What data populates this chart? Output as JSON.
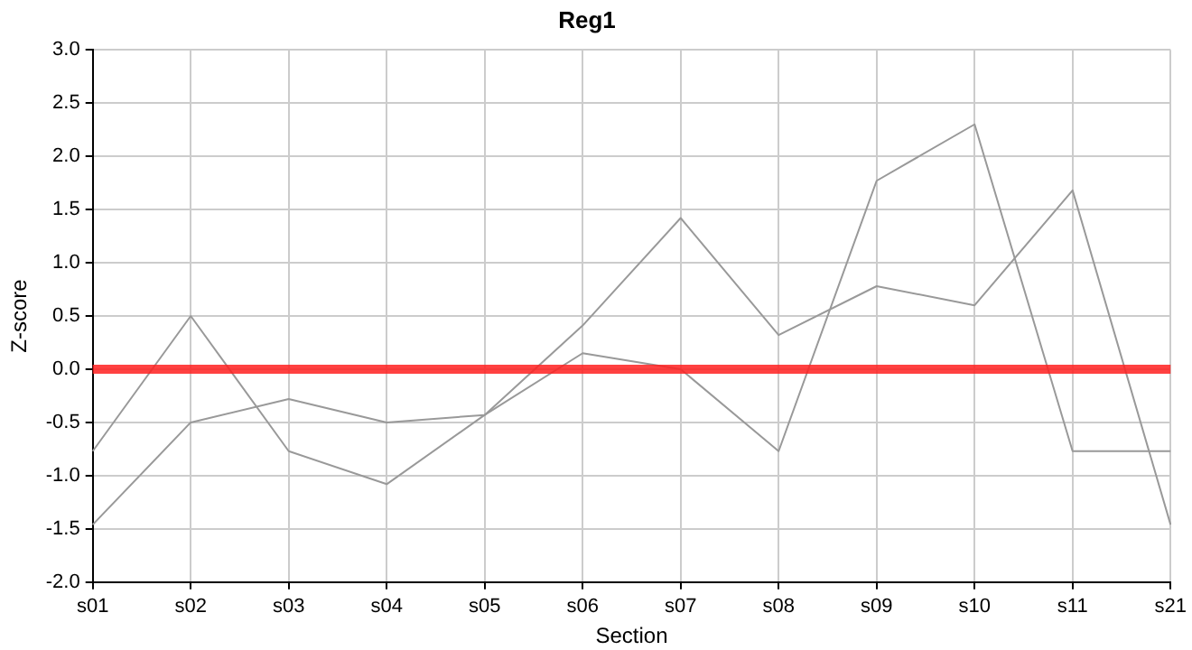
{
  "chart_data": {
    "type": "line",
    "title": "Reg1",
    "xlabel": "Section",
    "ylabel": "Z-score",
    "categories": [
      "s01",
      "s02",
      "s03",
      "s04",
      "s05",
      "s06",
      "s07",
      "s08",
      "s09",
      "s10",
      "s11",
      "s21"
    ],
    "series": [
      {
        "color": "#999999",
        "values": [
          -0.77,
          0.5,
          -0.77,
          -1.08,
          -0.43,
          0.41,
          1.42,
          0.32,
          0.78,
          0.6,
          1.68,
          -1.46
        ]
      },
      {
        "color": "#999999",
        "values": [
          -1.46,
          -0.5,
          -0.28,
          -0.5,
          -0.43,
          0.15,
          0.0,
          -0.77,
          1.77,
          2.3,
          -0.77,
          -0.77
        ]
      }
    ],
    "ylim": [
      -2,
      3
    ],
    "yticks": [
      {
        "value": -2,
        "label": "-2.0"
      },
      {
        "value": -1.5,
        "label": "-1.5"
      },
      {
        "value": -1,
        "label": "-1.0"
      },
      {
        "value": -0.5,
        "label": "-0.5"
      },
      {
        "value": 0,
        "label": "0.0"
      },
      {
        "value": 0.5,
        "label": "0.5"
      },
      {
        "value": 1,
        "label": "1.0"
      },
      {
        "value": 1.5,
        "label": "1.5"
      },
      {
        "value": 2,
        "label": "2.0"
      },
      {
        "value": 2.5,
        "label": "2.5"
      },
      {
        "value": 3,
        "label": "3.0"
      }
    ],
    "ref_lines": [
      {
        "axis": "y",
        "value": 0,
        "color": "#ff2020"
      }
    ],
    "grid": true,
    "legend": false,
    "marker": "none",
    "line_style": "solid"
  }
}
